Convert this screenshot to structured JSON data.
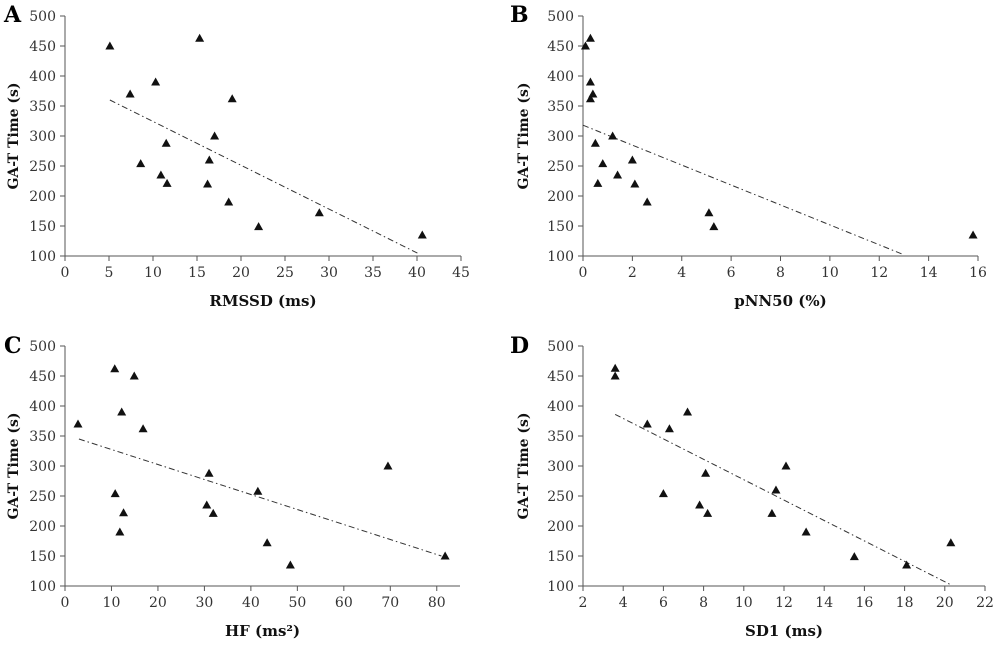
{
  "chart_data": [
    {
      "panel": "A",
      "type": "scatter",
      "xlabel": "RMSSD (ms)",
      "ylabel": "GA-T Time (s)",
      "xlim": [
        0,
        45
      ],
      "ylim": [
        100,
        500
      ],
      "xticks": [
        0,
        5,
        10,
        15,
        20,
        25,
        30,
        35,
        40,
        45
      ],
      "yticks": [
        100,
        150,
        200,
        250,
        300,
        350,
        400,
        450,
        500
      ],
      "marker": "triangle",
      "trendline": {
        "style": "dash-dot",
        "x": [
          5.1,
          40.3
        ],
        "y": [
          360,
          103
        ]
      },
      "points": [
        {
          "x": 5.1,
          "y": 450
        },
        {
          "x": 7.4,
          "y": 370
        },
        {
          "x": 8.6,
          "y": 254
        },
        {
          "x": 10.3,
          "y": 390
        },
        {
          "x": 10.9,
          "y": 235
        },
        {
          "x": 11.5,
          "y": 288
        },
        {
          "x": 11.6,
          "y": 221
        },
        {
          "x": 15.3,
          "y": 463
        },
        {
          "x": 16.2,
          "y": 220
        },
        {
          "x": 16.4,
          "y": 260
        },
        {
          "x": 17.0,
          "y": 300
        },
        {
          "x": 18.6,
          "y": 190
        },
        {
          "x": 19.0,
          "y": 362
        },
        {
          "x": 22.0,
          "y": 149
        },
        {
          "x": 28.9,
          "y": 172
        },
        {
          "x": 40.6,
          "y": 135
        }
      ]
    },
    {
      "panel": "B",
      "type": "scatter",
      "xlabel": "pNN50 (%)",
      "ylabel": "GA-T Time (s)",
      "xlim": [
        0,
        16
      ],
      "ylim": [
        100,
        500
      ],
      "xticks": [
        0,
        2,
        4,
        6,
        8,
        10,
        12,
        14,
        16
      ],
      "yticks": [
        100,
        150,
        200,
        250,
        300,
        350,
        400,
        450,
        500
      ],
      "marker": "triangle",
      "trendline": {
        "style": "dash-dot",
        "x": [
          0,
          13.0
        ],
        "y": [
          318,
          102
        ]
      },
      "points": [
        {
          "x": 0.1,
          "y": 450
        },
        {
          "x": 0.3,
          "y": 463
        },
        {
          "x": 0.3,
          "y": 362
        },
        {
          "x": 0.3,
          "y": 390
        },
        {
          "x": 0.4,
          "y": 370
        },
        {
          "x": 0.5,
          "y": 288
        },
        {
          "x": 0.6,
          "y": 221
        },
        {
          "x": 0.8,
          "y": 254
        },
        {
          "x": 1.2,
          "y": 300
        },
        {
          "x": 1.4,
          "y": 235
        },
        {
          "x": 2.0,
          "y": 260
        },
        {
          "x": 2.1,
          "y": 220
        },
        {
          "x": 2.6,
          "y": 190
        },
        {
          "x": 5.1,
          "y": 172
        },
        {
          "x": 5.3,
          "y": 149
        },
        {
          "x": 15.8,
          "y": 135
        }
      ]
    },
    {
      "panel": "C",
      "type": "scatter",
      "xlabel": "HF (ms²)",
      "ylabel": "GA-T Time (s)",
      "xlim": [
        0,
        85
      ],
      "ylim": [
        100,
        500
      ],
      "xticks": [
        0,
        10,
        20,
        30,
        40,
        50,
        60,
        70,
        80
      ],
      "yticks": [
        100,
        150,
        200,
        250,
        300,
        350,
        400,
        450,
        500
      ],
      "marker": "triangle",
      "trendline": {
        "style": "dash-dot",
        "x": [
          3,
          81
        ],
        "y": [
          345,
          150
        ]
      },
      "points": [
        {
          "x": 2.8,
          "y": 370
        },
        {
          "x": 10.7,
          "y": 462
        },
        {
          "x": 10.8,
          "y": 254
        },
        {
          "x": 11.8,
          "y": 190
        },
        {
          "x": 12.2,
          "y": 390
        },
        {
          "x": 12.6,
          "y": 222
        },
        {
          "x": 14.9,
          "y": 450
        },
        {
          "x": 16.8,
          "y": 362
        },
        {
          "x": 30.5,
          "y": 235
        },
        {
          "x": 31.0,
          "y": 288
        },
        {
          "x": 31.9,
          "y": 221
        },
        {
          "x": 41.5,
          "y": 258
        },
        {
          "x": 43.5,
          "y": 172
        },
        {
          "x": 48.5,
          "y": 135
        },
        {
          "x": 69.5,
          "y": 300
        },
        {
          "x": 81.8,
          "y": 150
        }
      ]
    },
    {
      "panel": "D",
      "type": "scatter",
      "xlabel": "SD1 (ms)",
      "ylabel": "GA-T Time (s)",
      "xlim": [
        2,
        22
      ],
      "ylim": [
        100,
        500
      ],
      "xticks": [
        2,
        4,
        6,
        8,
        10,
        12,
        14,
        16,
        18,
        20,
        22
      ],
      "yticks": [
        100,
        150,
        200,
        250,
        300,
        350,
        400,
        450,
        500
      ],
      "marker": "triangle",
      "trendline": {
        "style": "dash-dot",
        "x": [
          3.6,
          20.3
        ],
        "y": [
          386,
          102
        ]
      },
      "points": [
        {
          "x": 3.6,
          "y": 463
        },
        {
          "x": 3.6,
          "y": 450
        },
        {
          "x": 5.2,
          "y": 370
        },
        {
          "x": 6.0,
          "y": 254
        },
        {
          "x": 6.3,
          "y": 362
        },
        {
          "x": 7.2,
          "y": 390
        },
        {
          "x": 7.8,
          "y": 235
        },
        {
          "x": 8.1,
          "y": 288
        },
        {
          "x": 8.2,
          "y": 221
        },
        {
          "x": 11.4,
          "y": 221
        },
        {
          "x": 11.6,
          "y": 260
        },
        {
          "x": 12.1,
          "y": 300
        },
        {
          "x": 13.1,
          "y": 190
        },
        {
          "x": 15.5,
          "y": 149
        },
        {
          "x": 18.1,
          "y": 135
        },
        {
          "x": 20.3,
          "y": 172
        }
      ]
    }
  ]
}
